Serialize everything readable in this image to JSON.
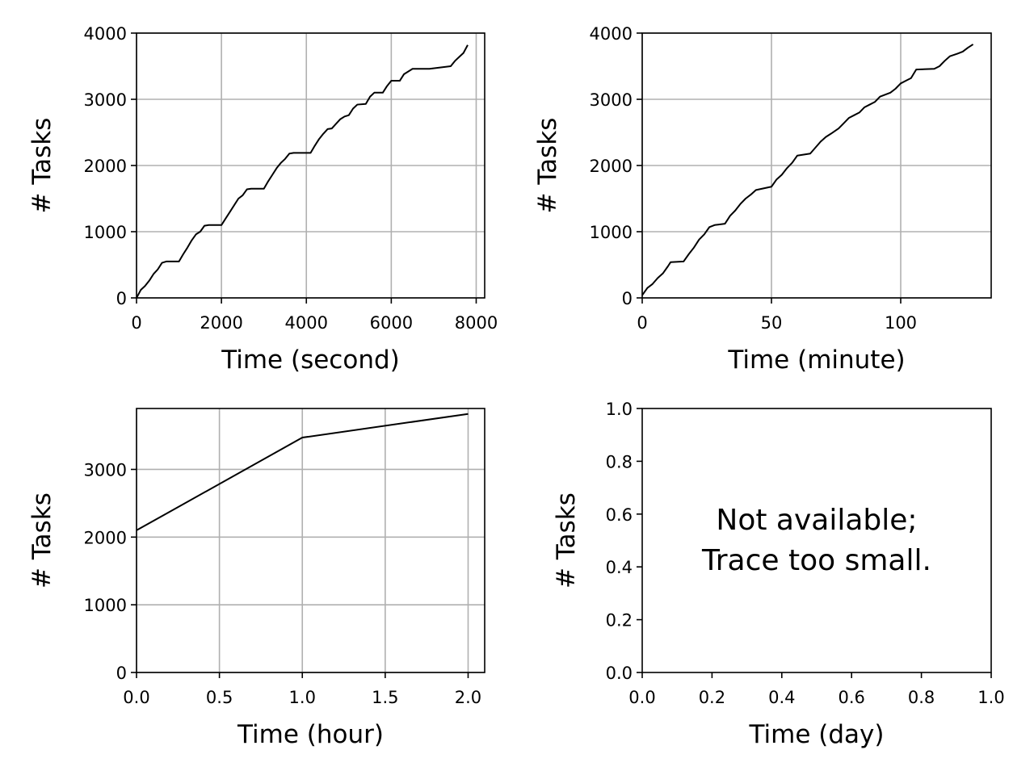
{
  "chart_data": [
    {
      "type": "line",
      "xlabel": "Time (second)",
      "ylabel": "# Tasks",
      "xlim": [
        0,
        8200
      ],
      "ylim": [
        0,
        4000
      ],
      "xticks": [
        0,
        2000,
        4000,
        6000,
        8000
      ],
      "xtick_labels": [
        "0",
        "2000",
        "4000",
        "6000",
        "8000"
      ],
      "yticks": [
        0,
        1000,
        2000,
        3000,
        4000
      ],
      "ytick_labels": [
        "0",
        "1000",
        "2000",
        "3000",
        "4000"
      ],
      "grid": true,
      "series": [
        {
          "color": "#000000",
          "x": [
            0,
            100,
            200,
            300,
            400,
            500,
            600,
            700,
            1000,
            1100,
            1200,
            1300,
            1400,
            1500,
            1600,
            1700,
            2000,
            2100,
            2200,
            2300,
            2400,
            2500,
            2600,
            2700,
            3000,
            3100,
            3200,
            3300,
            3400,
            3500,
            3600,
            3700,
            4100,
            4200,
            4300,
            4400,
            4500,
            4600,
            4800,
            4900,
            5000,
            5100,
            5200,
            5400,
            5500,
            5600,
            5800,
            5900,
            6000,
            6200,
            6300,
            6500,
            6600,
            6800,
            6900,
            7400,
            7500,
            7600,
            7700,
            7800
          ],
          "y": [
            0,
            120,
            180,
            260,
            360,
            430,
            530,
            550,
            550,
            660,
            760,
            870,
            960,
            1000,
            1090,
            1100,
            1100,
            1200,
            1300,
            1400,
            1500,
            1550,
            1640,
            1650,
            1650,
            1760,
            1860,
            1960,
            2040,
            2100,
            2180,
            2190,
            2190,
            2300,
            2400,
            2480,
            2550,
            2560,
            2700,
            2740,
            2760,
            2860,
            2920,
            2930,
            3040,
            3100,
            3100,
            3200,
            3280,
            3280,
            3380,
            3460,
            3460,
            3460,
            3460,
            3500,
            3580,
            3640,
            3700,
            3820
          ]
        }
      ]
    },
    {
      "type": "line",
      "xlabel": "Time (minute)",
      "ylabel": "# Tasks",
      "xlim": [
        0,
        135
      ],
      "ylim": [
        0,
        4000
      ],
      "xticks": [
        0,
        50,
        100
      ],
      "xtick_labels": [
        "0",
        "50",
        "100"
      ],
      "yticks": [
        0,
        1000,
        2000,
        3000,
        4000
      ],
      "ytick_labels": [
        "0",
        "1000",
        "2000",
        "3000",
        "4000"
      ],
      "grid": true,
      "series": [
        {
          "color": "#000000",
          "x": [
            0,
            2,
            4,
            6,
            8,
            10,
            11,
            16,
            18,
            20,
            22,
            24,
            26,
            28,
            32,
            34,
            36,
            38,
            40,
            42,
            44,
            50,
            52,
            54,
            56,
            58,
            60,
            65,
            67,
            69,
            71,
            73,
            76,
            78,
            80,
            82,
            84,
            86,
            88,
            90,
            92,
            96,
            98,
            100,
            102,
            104,
            106,
            113,
            115,
            117,
            119,
            122,
            124,
            126,
            128
          ],
          "y": [
            40,
            150,
            210,
            300,
            370,
            480,
            540,
            550,
            660,
            760,
            880,
            960,
            1070,
            1100,
            1120,
            1240,
            1320,
            1420,
            1500,
            1560,
            1630,
            1680,
            1790,
            1860,
            1960,
            2040,
            2150,
            2180,
            2270,
            2360,
            2430,
            2480,
            2560,
            2640,
            2720,
            2760,
            2800,
            2880,
            2920,
            2960,
            3040,
            3100,
            3160,
            3240,
            3280,
            3320,
            3450,
            3460,
            3500,
            3580,
            3650,
            3690,
            3720,
            3780,
            3830
          ]
        }
      ]
    },
    {
      "type": "line",
      "xlabel": "Time (hour)",
      "ylabel": "# Tasks",
      "xlim": [
        0,
        2.1
      ],
      "ylim": [
        0,
        3900
      ],
      "xticks": [
        0,
        0.5,
        1.0,
        1.5,
        2.0
      ],
      "xtick_labels": [
        "0.0",
        "0.5",
        "1.0",
        "1.5",
        "2.0"
      ],
      "yticks": [
        0,
        1000,
        2000,
        3000
      ],
      "ytick_labels": [
        "0",
        "1000",
        "2000",
        "3000"
      ],
      "grid": true,
      "series": [
        {
          "color": "#000000",
          "x": [
            0,
            1,
            2
          ],
          "y": [
            2100,
            3470,
            3820
          ]
        }
      ]
    },
    {
      "type": "line",
      "xlabel": "Time (day)",
      "ylabel": "# Tasks",
      "xlim": [
        0,
        1
      ],
      "ylim": [
        0,
        1
      ],
      "xticks": [
        0,
        0.2,
        0.4,
        0.6,
        0.8,
        1.0
      ],
      "xtick_labels": [
        "0.0",
        "0.2",
        "0.4",
        "0.6",
        "0.8",
        "1.0"
      ],
      "yticks": [
        0,
        0.2,
        0.4,
        0.6,
        0.8,
        1.0
      ],
      "ytick_labels": [
        "0.0",
        "0.2",
        "0.4",
        "0.6",
        "0.8",
        "1.0"
      ],
      "grid": false,
      "annotation": [
        "Not available;",
        "Trace too small."
      ],
      "series": []
    }
  ]
}
